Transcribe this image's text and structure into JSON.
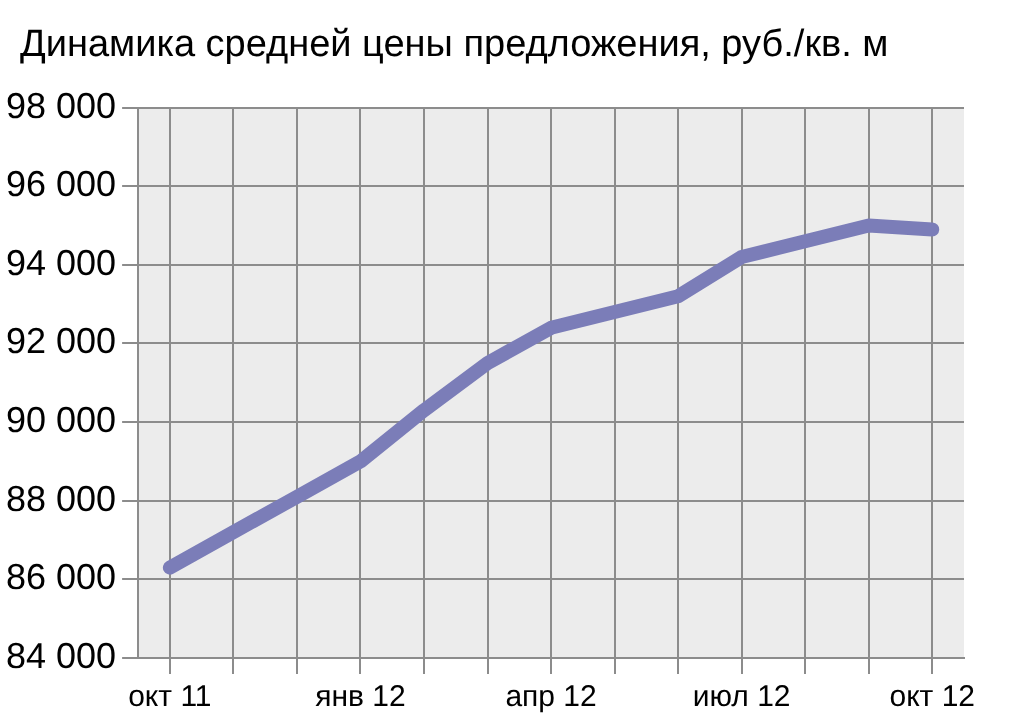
{
  "chart_data": {
    "type": "line",
    "title": "Динамика средней цены предложения, руб./кв. м",
    "categories": [
      "окт 11",
      null,
      null,
      "янв 12",
      null,
      null,
      "апр 12",
      null,
      null,
      "июл 12",
      null,
      null,
      "окт 12"
    ],
    "series": [
      {
        "color": "#7b7db8",
        "values": [
          86300,
          87200,
          88100,
          89000,
          90300,
          91500,
          92400,
          92800,
          93200,
          94200,
          94600,
          95000,
          94900
        ]
      }
    ],
    "ylim": [
      84000,
      98000
    ],
    "yticks": [
      {
        "value": 84000,
        "label": "84 000"
      },
      {
        "value": 86000,
        "label": "86 000"
      },
      {
        "value": 88000,
        "label": "88 000"
      },
      {
        "value": 90000,
        "label": "90 000"
      },
      {
        "value": 92000,
        "label": "92 000"
      },
      {
        "value": 94000,
        "label": "94 000"
      },
      {
        "value": 96000,
        "label": "96 000"
      },
      {
        "value": 98000,
        "label": "98 000"
      }
    ],
    "grid": true,
    "legend": false,
    "marker": "none",
    "line_style": "solid"
  }
}
